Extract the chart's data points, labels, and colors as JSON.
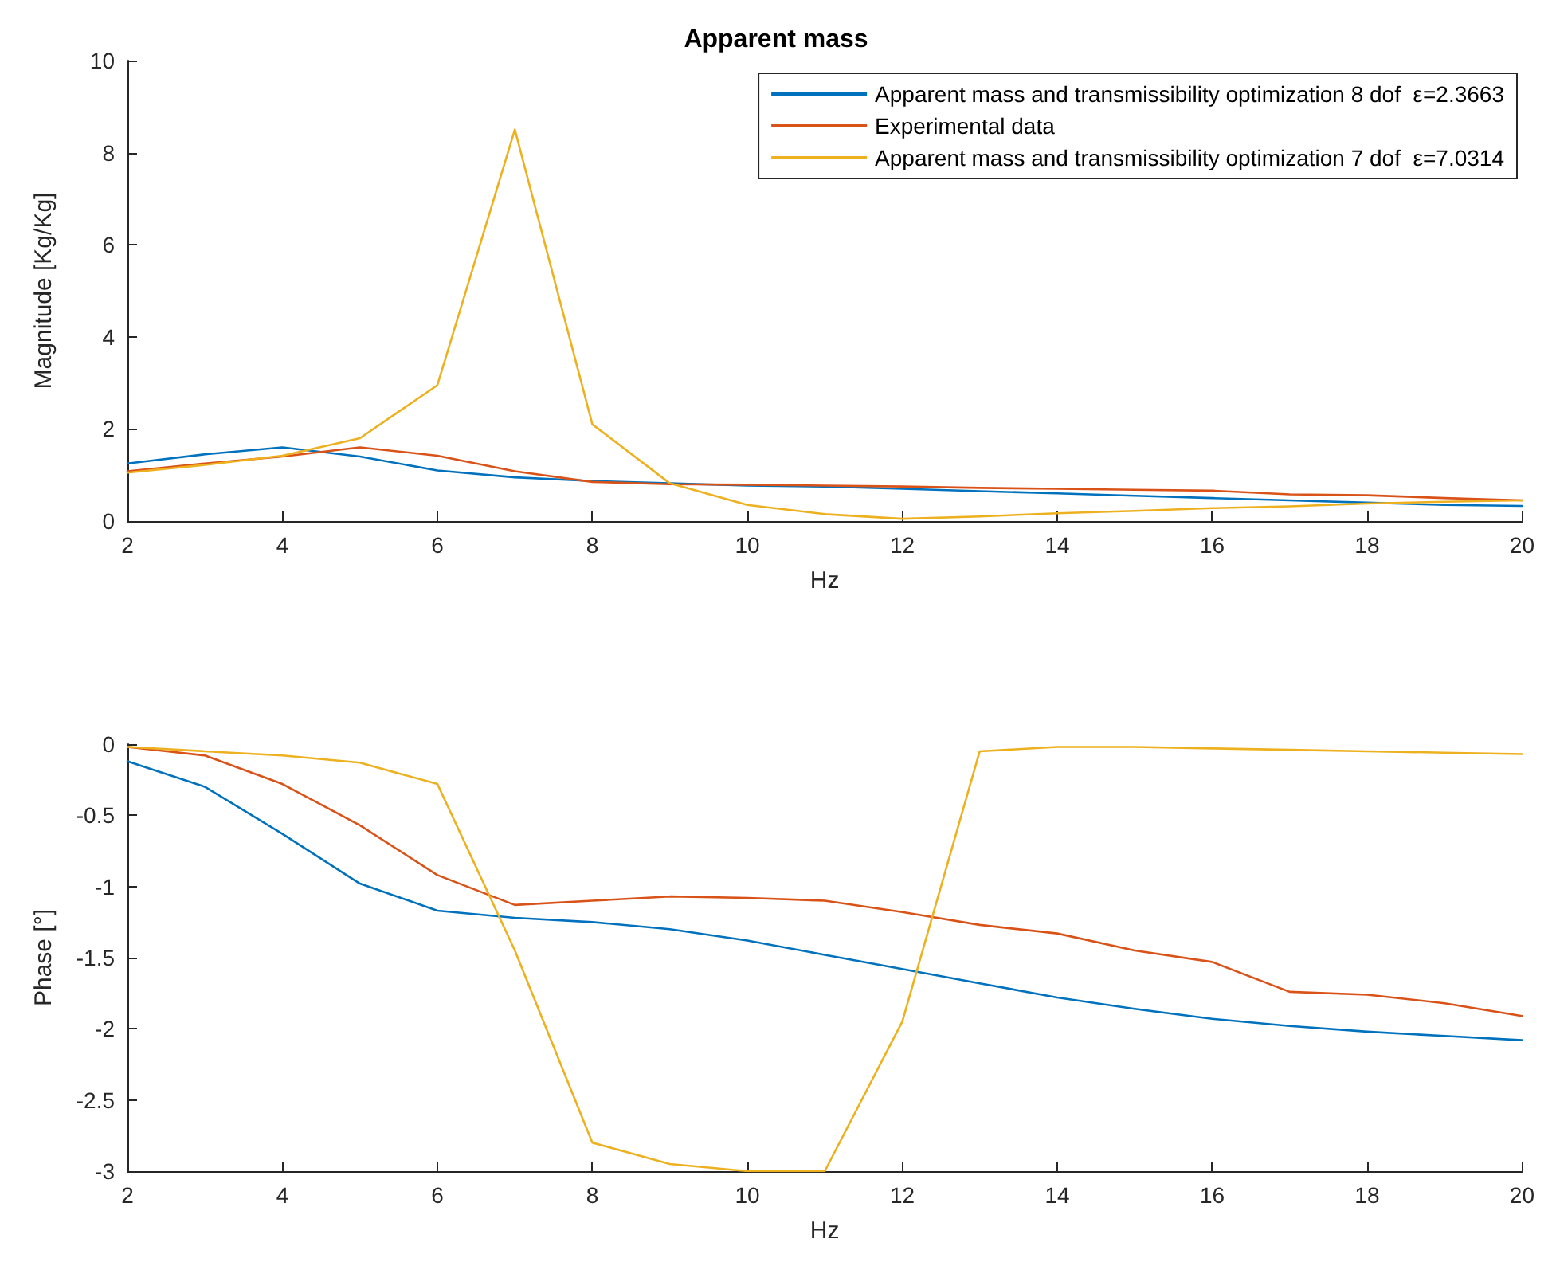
{
  "chart_data": [
    {
      "type": "line",
      "title": "Apparent mass",
      "xlabel": "Hz",
      "ylabel": "Magnitude [Kg/Kg]",
      "x": [
        2,
        3,
        4,
        5,
        6,
        7,
        8,
        9,
        10,
        11,
        12,
        13,
        14,
        15,
        16,
        17,
        18,
        19,
        20
      ],
      "xlim": [
        2,
        20
      ],
      "xticks": [
        2,
        4,
        6,
        8,
        10,
        12,
        14,
        16,
        18,
        20
      ],
      "ylim": [
        0,
        10
      ],
      "yticks": [
        0,
        2,
        4,
        6,
        8,
        10
      ],
      "grid": false,
      "legend": "top right",
      "marker": "none",
      "line_style": "solid",
      "series": [
        {
          "name": "Apparent mass and transmissibility optimization 8 dof  ε=2.3663",
          "color": "#0072bd",
          "values": [
            1.25,
            1.45,
            1.6,
            1.4,
            1.1,
            0.95,
            0.87,
            0.82,
            0.77,
            0.75,
            0.7,
            0.65,
            0.6,
            0.55,
            0.5,
            0.45,
            0.4,
            0.35,
            0.33
          ]
        },
        {
          "name": "Experimental data",
          "color": "#d95319",
          "values": [
            1.08,
            1.25,
            1.4,
            1.6,
            1.42,
            1.08,
            0.85,
            0.8,
            0.79,
            0.77,
            0.75,
            0.72,
            0.7,
            0.68,
            0.66,
            0.58,
            0.56,
            0.5,
            0.45
          ]
        },
        {
          "name": "Apparent mass and transmissibility optimization 7 dof  ε=7.0314",
          "color": "#edb120",
          "values": [
            1.05,
            1.22,
            1.42,
            1.8,
            2.95,
            8.5,
            2.1,
            0.82,
            0.35,
            0.15,
            0.05,
            0.1,
            0.17,
            0.22,
            0.28,
            0.32,
            0.38,
            0.42,
            0.45
          ]
        }
      ]
    },
    {
      "type": "line",
      "xlabel": "Hz",
      "ylabel": "Phase [°]",
      "x": [
        2,
        3,
        4,
        5,
        6,
        7,
        8,
        9,
        10,
        11,
        12,
        13,
        14,
        15,
        16,
        17,
        18,
        19,
        20
      ],
      "xlim": [
        2,
        20
      ],
      "xticks": [
        2,
        4,
        6,
        8,
        10,
        12,
        14,
        16,
        18,
        20
      ],
      "ylim": [
        -3,
        0
      ],
      "yticks": [
        -3,
        -2.5,
        -2,
        -1.5,
        -1,
        -0.5,
        0
      ],
      "grid": false,
      "legend": false,
      "marker": "none",
      "line_style": "solid",
      "series": [
        {
          "color": "#0072bd",
          "values": [
            -0.12,
            -0.3,
            -0.63,
            -0.98,
            -1.17,
            -1.22,
            -1.25,
            -1.3,
            -1.38,
            -1.48,
            -1.58,
            -1.68,
            -1.78,
            -1.86,
            -1.93,
            -1.98,
            -2.02,
            -2.05,
            -2.08
          ]
        },
        {
          "color": "#d95319",
          "values": [
            -0.02,
            -0.08,
            -0.28,
            -0.57,
            -0.92,
            -1.13,
            -1.1,
            -1.07,
            -1.08,
            -1.1,
            -1.18,
            -1.27,
            -1.33,
            -1.45,
            -1.53,
            -1.74,
            -1.76,
            -1.82,
            -1.91
          ]
        },
        {
          "color": "#edb120",
          "values": [
            -0.02,
            -0.05,
            -0.08,
            -0.13,
            -0.28,
            -1.45,
            -2.8,
            -2.95,
            -3.0,
            -3.0,
            -1.95,
            -0.05,
            -0.02,
            -0.02,
            -0.03,
            -0.04,
            -0.05,
            -0.06,
            -0.07
          ]
        }
      ]
    }
  ]
}
